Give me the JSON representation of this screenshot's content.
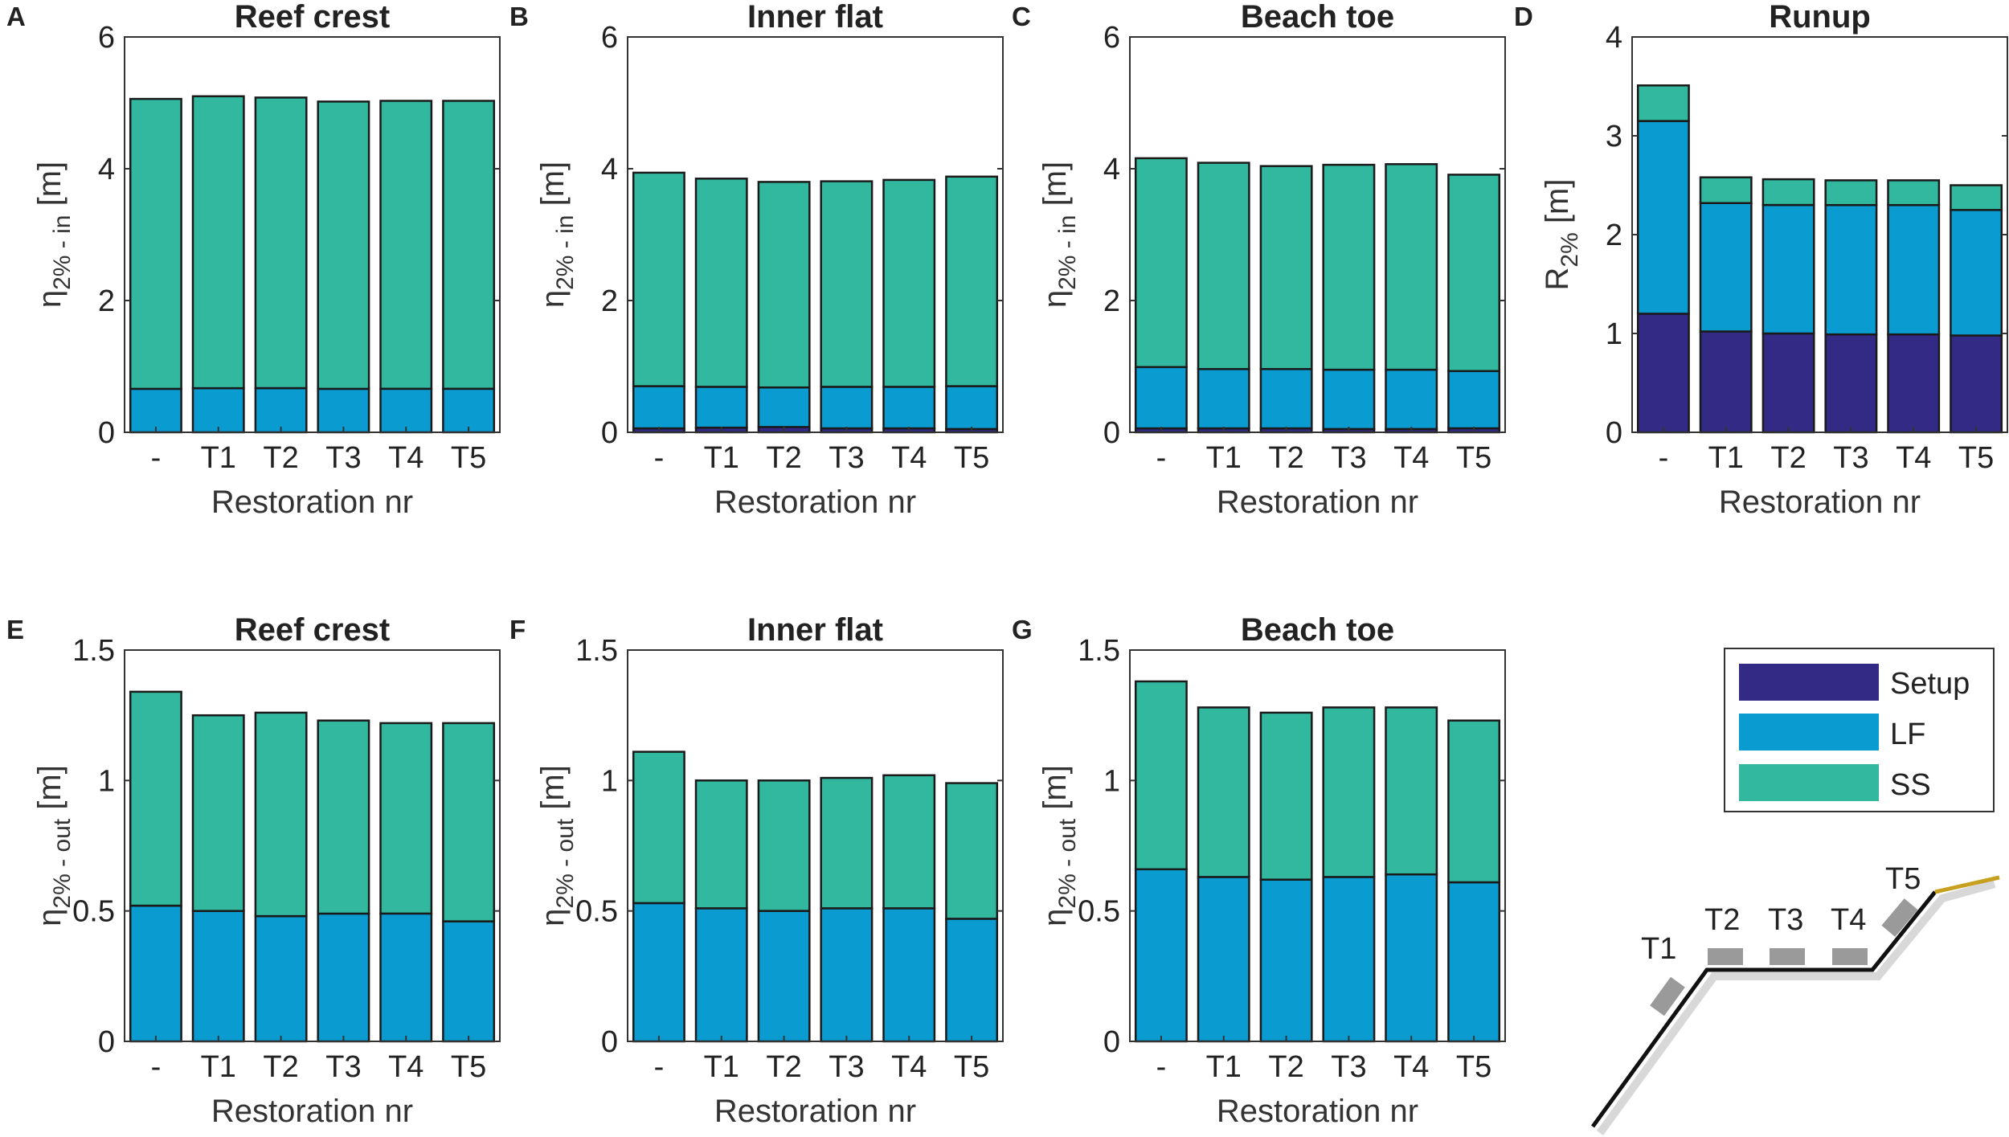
{
  "colors": {
    "setup": "#332a86",
    "lf": "#0a9bd1",
    "ss": "#31b89e",
    "outline": "#1a1a1a",
    "frame": "#333333",
    "pad": "#9a9a9a",
    "beach": "#c8a020",
    "shadow": "#d8d8d8"
  },
  "chart_data": [
    {
      "type": "bar",
      "letter": "A",
      "title": "Reef crest",
      "ylabel_main": "η",
      "ylabel_sub": "2% - in",
      "ylabel_unit": " [m]",
      "xlabel": "Restoration nr",
      "categories": [
        "-",
        "T1",
        "T2",
        "T3",
        "T4",
        "T5"
      ],
      "ylim": [
        0,
        6
      ],
      "yticks": [
        "0",
        "2",
        "4",
        "6"
      ],
      "ytick_values": [
        0,
        2,
        4,
        6
      ],
      "series": [
        {
          "name": "Setup",
          "values": [
            0,
            0,
            0,
            0,
            0,
            0
          ]
        },
        {
          "name": "LF",
          "values": [
            0.66,
            0.67,
            0.67,
            0.66,
            0.66,
            0.66
          ]
        },
        {
          "name": "SS",
          "values": [
            4.4,
            4.43,
            4.41,
            4.36,
            4.37,
            4.37
          ]
        }
      ]
    },
    {
      "type": "bar",
      "letter": "B",
      "title": "Inner flat",
      "ylabel_main": "η",
      "ylabel_sub": "2% - in",
      "ylabel_unit": " [m]",
      "xlabel": "Restoration nr",
      "categories": [
        "-",
        "T1",
        "T2",
        "T3",
        "T4",
        "T5"
      ],
      "ylim": [
        0,
        6
      ],
      "yticks": [
        "0",
        "2",
        "4",
        "6"
      ],
      "ytick_values": [
        0,
        2,
        4,
        6
      ],
      "series": [
        {
          "name": "Setup",
          "values": [
            0.06,
            0.07,
            0.08,
            0.06,
            0.06,
            0.05
          ]
        },
        {
          "name": "LF",
          "values": [
            0.64,
            0.62,
            0.6,
            0.63,
            0.63,
            0.65
          ]
        },
        {
          "name": "SS",
          "values": [
            3.24,
            3.16,
            3.12,
            3.12,
            3.14,
            3.18
          ]
        }
      ]
    },
    {
      "type": "bar",
      "letter": "C",
      "title": "Beach toe",
      "ylabel_main": "η",
      "ylabel_sub": "2% - in",
      "ylabel_unit": " [m]",
      "xlabel": "Restoration nr",
      "categories": [
        "-",
        "T1",
        "T2",
        "T3",
        "T4",
        "T5"
      ],
      "ylim": [
        0,
        6
      ],
      "yticks": [
        "0",
        "2",
        "4",
        "6"
      ],
      "ytick_values": [
        0,
        2,
        4,
        6
      ],
      "series": [
        {
          "name": "Setup",
          "values": [
            0.06,
            0.06,
            0.06,
            0.05,
            0.05,
            0.06
          ]
        },
        {
          "name": "LF",
          "values": [
            0.93,
            0.9,
            0.9,
            0.9,
            0.9,
            0.87
          ]
        },
        {
          "name": "SS",
          "values": [
            3.17,
            3.13,
            3.08,
            3.11,
            3.12,
            2.98
          ]
        }
      ]
    },
    {
      "type": "bar",
      "letter": "D",
      "title": "Runup",
      "ylabel_main": "R",
      "ylabel_sub": "2%",
      "ylabel_unit": " [m]",
      "xlabel": "Restoration nr",
      "categories": [
        "-",
        "T1",
        "T2",
        "T3",
        "T4",
        "T5"
      ],
      "ylim": [
        0,
        4
      ],
      "yticks": [
        "0",
        "1",
        "2",
        "3",
        "4"
      ],
      "ytick_values": [
        0,
        1,
        2,
        3,
        4
      ],
      "series": [
        {
          "name": "Setup",
          "values": [
            1.2,
            1.02,
            1.0,
            0.99,
            0.99,
            0.98
          ]
        },
        {
          "name": "LF",
          "values": [
            1.95,
            1.3,
            1.3,
            1.31,
            1.31,
            1.27
          ]
        },
        {
          "name": "SS",
          "values": [
            0.36,
            0.26,
            0.26,
            0.25,
            0.25,
            0.25
          ]
        }
      ]
    },
    {
      "type": "bar",
      "letter": "E",
      "title": "Reef crest",
      "ylabel_main": "η",
      "ylabel_sub": "2% - out",
      "ylabel_unit": " [m]",
      "xlabel": "Restoration nr",
      "categories": [
        "-",
        "T1",
        "T2",
        "T3",
        "T4",
        "T5"
      ],
      "ylim": [
        0,
        1.5
      ],
      "yticks": [
        "0",
        "0.5",
        "1",
        "1.5"
      ],
      "ytick_values": [
        0,
        0.5,
        1,
        1.5
      ],
      "series": [
        {
          "name": "Setup",
          "values": [
            0,
            0,
            0,
            0,
            0,
            0
          ]
        },
        {
          "name": "LF",
          "values": [
            0.52,
            0.5,
            0.48,
            0.49,
            0.49,
            0.46
          ]
        },
        {
          "name": "SS",
          "values": [
            0.82,
            0.75,
            0.78,
            0.74,
            0.73,
            0.76
          ]
        }
      ]
    },
    {
      "type": "bar",
      "letter": "F",
      "title": "Inner flat",
      "ylabel_main": "η",
      "ylabel_sub": "2% - out",
      "ylabel_unit": " [m]",
      "xlabel": "Restoration nr",
      "categories": [
        "-",
        "T1",
        "T2",
        "T3",
        "T4",
        "T5"
      ],
      "ylim": [
        0,
        1.5
      ],
      "yticks": [
        "0",
        "0.5",
        "1",
        "1.5"
      ],
      "ytick_values": [
        0,
        0.5,
        1,
        1.5
      ],
      "series": [
        {
          "name": "Setup",
          "values": [
            0,
            0,
            0,
            0,
            0,
            0
          ]
        },
        {
          "name": "LF",
          "values": [
            0.53,
            0.51,
            0.5,
            0.51,
            0.51,
            0.47
          ]
        },
        {
          "name": "SS",
          "values": [
            0.58,
            0.49,
            0.5,
            0.5,
            0.51,
            0.52
          ]
        }
      ]
    },
    {
      "type": "bar",
      "letter": "G",
      "title": "Beach toe",
      "ylabel_main": "η",
      "ylabel_sub": "2% - out",
      "ylabel_unit": " [m]",
      "xlabel": "Restoration nr",
      "categories": [
        "-",
        "T1",
        "T2",
        "T3",
        "T4",
        "T5"
      ],
      "ylim": [
        0,
        1.5
      ],
      "yticks": [
        "0",
        "0.5",
        "1",
        "1.5"
      ],
      "ytick_values": [
        0,
        0.5,
        1,
        1.5
      ],
      "series": [
        {
          "name": "Setup",
          "values": [
            0,
            0,
            0,
            0,
            0,
            0
          ]
        },
        {
          "name": "LF",
          "values": [
            0.66,
            0.63,
            0.62,
            0.63,
            0.64,
            0.61
          ]
        },
        {
          "name": "SS",
          "values": [
            0.72,
            0.65,
            0.64,
            0.65,
            0.64,
            0.62
          ]
        }
      ]
    }
  ],
  "legend": {
    "entries": [
      {
        "label": "Setup",
        "color": "#332a86"
      },
      {
        "label": "LF",
        "color": "#0a9bd1"
      },
      {
        "label": "SS",
        "color": "#31b89e"
      }
    ],
    "placement": "bottom-right"
  },
  "diagram": {
    "labels": [
      "T1",
      "T2",
      "T3",
      "T4",
      "T5"
    ]
  }
}
